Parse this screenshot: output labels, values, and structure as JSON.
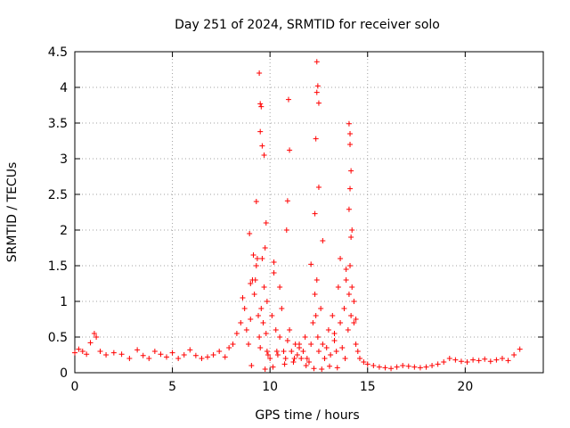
{
  "chart_data": {
    "type": "scatter",
    "title": "Day 251 of 2024, SRMTID for receiver solo",
    "xlabel": "GPS time / hours",
    "ylabel": "SRMTID / TECUs",
    "xlim": [
      0,
      24
    ],
    "ylim": [
      0,
      4.5
    ],
    "x_ticks": [
      0,
      5,
      10,
      15,
      20
    ],
    "x_tick_labels": [
      "0",
      "5",
      "10",
      "15",
      "20"
    ],
    "y_ticks": [
      0,
      0.5,
      1,
      1.5,
      2,
      2.5,
      3,
      3.5,
      4,
      4.5
    ],
    "y_tick_labels": [
      "0",
      "0.5",
      "1",
      "1.5",
      "2",
      "2.5",
      "3",
      "3.5",
      "4",
      "4.5"
    ],
    "grid": true,
    "marker": "+",
    "color": "#ff0000",
    "series": [
      {
        "name": "SRMTID",
        "x": [
          0.0,
          0.2,
          0.4,
          0.6,
          0.8,
          1.0,
          1.1,
          1.3,
          1.6,
          2.0,
          2.4,
          2.8,
          3.2,
          3.5,
          3.8,
          4.1,
          4.4,
          4.7,
          5.0,
          5.3,
          5.6,
          5.9,
          6.2,
          6.5,
          6.8,
          7.1,
          7.4,
          7.7,
          7.9,
          8.1,
          8.3,
          8.5,
          8.6,
          8.7,
          8.8,
          8.9,
          9.0,
          9.1,
          9.2,
          9.25,
          9.3,
          9.35,
          9.4,
          9.45,
          9.5,
          9.55,
          9.6,
          9.65,
          9.7,
          9.75,
          9.8,
          9.85,
          9.9,
          10.0,
          10.1,
          10.2,
          10.3,
          10.4,
          10.5,
          10.6,
          10.7,
          10.8,
          10.9,
          11.0,
          11.1,
          11.2,
          11.3,
          11.4,
          11.5,
          11.6,
          11.7,
          11.8,
          11.9,
          12.0,
          12.1,
          12.2,
          12.3,
          12.35,
          12.4,
          12.45,
          12.5,
          12.6,
          12.7,
          12.8,
          12.9,
          13.0,
          13.1,
          13.2,
          13.3,
          13.4,
          13.5,
          13.6,
          13.7,
          13.8,
          13.9,
          14.0,
          14.05,
          14.1,
          14.15,
          14.2,
          14.3,
          14.4,
          14.5,
          14.6,
          14.8,
          15.0,
          15.3,
          15.6,
          15.9,
          16.2,
          16.5,
          16.8,
          17.1,
          17.4,
          17.7,
          18.0,
          18.3,
          18.6,
          18.9,
          19.2,
          19.5,
          19.8,
          20.1,
          20.4,
          20.7,
          21.0,
          21.3,
          21.6,
          21.9,
          22.2,
          22.5,
          22.8,
          9.45,
          9.5,
          9.55,
          9.5,
          9.6,
          9.7,
          9.3,
          9.8,
          10.95,
          11.0,
          10.9,
          10.85,
          12.4,
          12.45,
          12.4,
          12.5,
          12.35,
          12.5,
          12.3,
          14.05,
          14.1,
          14.1,
          14.15,
          14.1,
          14.05,
          14.2,
          14.15,
          8.95,
          9.15,
          9.0,
          9.85,
          10.2,
          10.5,
          11.5,
          12.1,
          12.7,
          13.3,
          13.6,
          13.9,
          14.3,
          14.4,
          9.05,
          9.75,
          10.15,
          10.35,
          10.75,
          11.25,
          11.85,
          12.25,
          12.65,
          13.05,
          13.45,
          13.85
        ],
        "y": [
          0.28,
          0.33,
          0.3,
          0.26,
          0.42,
          0.55,
          0.5,
          0.3,
          0.25,
          0.28,
          0.26,
          0.2,
          0.32,
          0.24,
          0.2,
          0.3,
          0.26,
          0.22,
          0.28,
          0.2,
          0.25,
          0.32,
          0.24,
          0.2,
          0.22,
          0.25,
          0.3,
          0.22,
          0.35,
          0.4,
          0.55,
          0.7,
          1.05,
          0.9,
          0.6,
          0.4,
          0.75,
          1.3,
          1.1,
          1.3,
          1.5,
          1.6,
          0.8,
          0.5,
          0.35,
          0.9,
          1.6,
          0.7,
          1.2,
          1.75,
          0.55,
          0.3,
          0.25,
          0.2,
          0.8,
          1.4,
          0.6,
          0.25,
          0.5,
          0.9,
          0.3,
          0.2,
          0.45,
          0.6,
          0.3,
          0.15,
          0.4,
          0.25,
          0.35,
          0.2,
          0.3,
          0.5,
          0.2,
          0.15,
          0.4,
          0.7,
          1.1,
          0.8,
          1.3,
          0.5,
          0.3,
          0.9,
          0.4,
          0.2,
          0.35,
          0.6,
          0.25,
          0.8,
          0.45,
          0.3,
          1.2,
          0.7,
          0.35,
          0.9,
          1.3,
          0.6,
          1.1,
          1.5,
          0.8,
          1.2,
          0.7,
          0.4,
          0.3,
          0.2,
          0.15,
          0.12,
          0.1,
          0.08,
          0.07,
          0.06,
          0.08,
          0.1,
          0.09,
          0.08,
          0.07,
          0.08,
          0.1,
          0.12,
          0.15,
          0.2,
          0.18,
          0.16,
          0.15,
          0.18,
          0.17,
          0.19,
          0.16,
          0.18,
          0.2,
          0.17,
          0.25,
          0.33,
          4.2,
          3.77,
          3.73,
          3.38,
          3.18,
          3.05,
          2.4,
          2.1,
          3.83,
          3.12,
          2.41,
          2.0,
          4.36,
          4.02,
          3.93,
          3.78,
          3.28,
          2.6,
          2.23,
          3.49,
          3.35,
          3.2,
          2.83,
          2.58,
          2.29,
          2.0,
          1.9,
          1.95,
          1.65,
          1.25,
          1.0,
          1.55,
          1.2,
          0.4,
          1.52,
          1.85,
          0.55,
          1.6,
          1.45,
          1.0,
          0.75,
          0.1,
          0.05,
          0.08,
          0.3,
          0.12,
          0.2,
          0.1,
          0.06,
          0.05,
          0.09,
          0.07,
          0.2
        ]
      }
    ]
  }
}
